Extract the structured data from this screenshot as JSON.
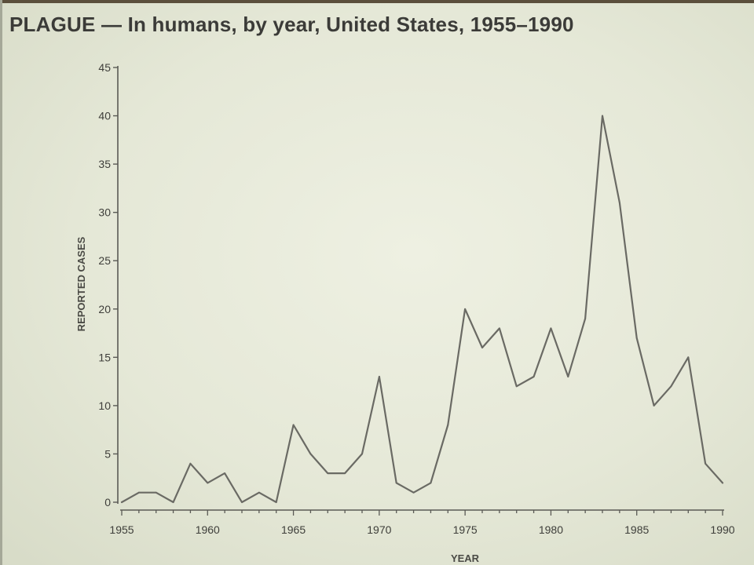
{
  "title": "PLAGUE — In humans, by year, United States, 1955–1990",
  "chart_data": {
    "type": "line",
    "title": "PLAGUE — In humans, by year, United States, 1955–1990",
    "xlabel": "YEAR",
    "ylabel": "REPORTED CASES",
    "xlim": [
      1955,
      1990
    ],
    "ylim": [
      0,
      45
    ],
    "x_ticks": [
      1955,
      1960,
      1965,
      1970,
      1975,
      1980,
      1985,
      1990
    ],
    "x_tick_labels": [
      "1955",
      "1960",
      "1965",
      "1970",
      "1975",
      "1980",
      "1985",
      "1990"
    ],
    "y_ticks": [
      0,
      5,
      10,
      15,
      20,
      25,
      30,
      35,
      40,
      45
    ],
    "y_tick_labels": [
      "0",
      "5",
      "10",
      "15",
      "20",
      "25",
      "30",
      "35",
      "40",
      "45"
    ],
    "grid": false,
    "series": [
      {
        "x": [
          1955,
          1956,
          1957,
          1958,
          1959,
          1960,
          1961,
          1962,
          1963,
          1964,
          1965,
          1966,
          1967,
          1968,
          1969,
          1970,
          1971,
          1972,
          1973,
          1974,
          1975,
          1976,
          1977,
          1978,
          1979,
          1980,
          1981,
          1982,
          1983,
          1984,
          1985,
          1986,
          1987,
          1988,
          1989,
          1990
        ],
        "values": [
          0,
          1,
          1,
          0,
          4,
          2,
          3,
          0,
          1,
          0,
          8,
          5,
          3,
          3,
          5,
          13,
          2,
          1,
          2,
          8,
          20,
          16,
          18,
          12,
          13,
          18,
          13,
          19,
          40,
          31,
          17,
          10,
          12,
          15,
          4,
          2
        ]
      }
    ]
  }
}
